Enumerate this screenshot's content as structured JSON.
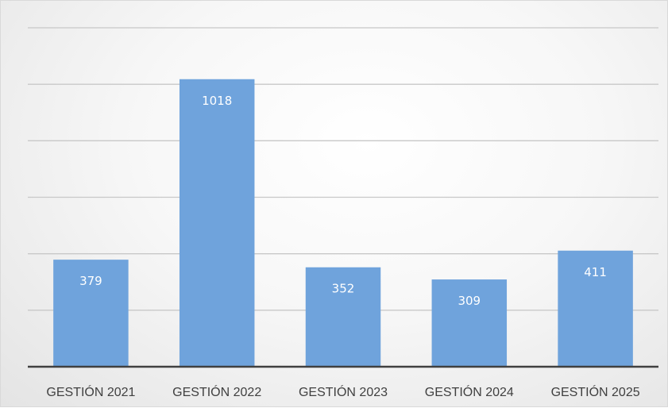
{
  "chart_data": {
    "type": "bar",
    "categories": [
      "GESTIÓN 2021",
      "GESTIÓN 2022",
      "GESTIÓN 2023",
      "GESTIÓN 2024",
      "GESTIÓN 2025"
    ],
    "values": [
      379,
      1018,
      352,
      309,
      411
    ],
    "title": "",
    "xlabel": "",
    "ylabel": "",
    "ylim": [
      0,
      1200
    ],
    "grid": true,
    "legend": "none",
    "bar_color": "#6fa3dc",
    "label_color": "#ffffff",
    "axis_color": "#404040",
    "grid_color": "#c8c8c8"
  }
}
